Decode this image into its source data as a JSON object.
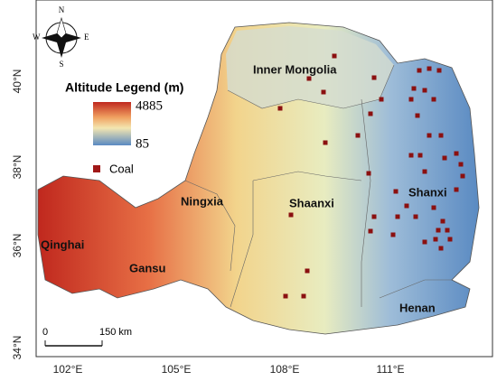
{
  "compass": {
    "north": "N",
    "south": "S",
    "east": "E",
    "west": "W"
  },
  "legend": {
    "title": "Altitude Legend (m)",
    "max_label": "4885",
    "min_label": "85",
    "coal_label": "Coal"
  },
  "regions": [
    "Inner Mongolia",
    "Shaanxi",
    "Shanxi",
    "Ningxia",
    "Qinghai",
    "Gansu",
    "Henan"
  ],
  "lat_labels": [
    "40°N",
    "38°N",
    "36°N",
    "34°N"
  ],
  "lon_labels": [
    "102°E",
    "105°E",
    "108°E",
    "111°E"
  ],
  "scale_bar": {
    "start": "0",
    "end": "150 km"
  }
}
